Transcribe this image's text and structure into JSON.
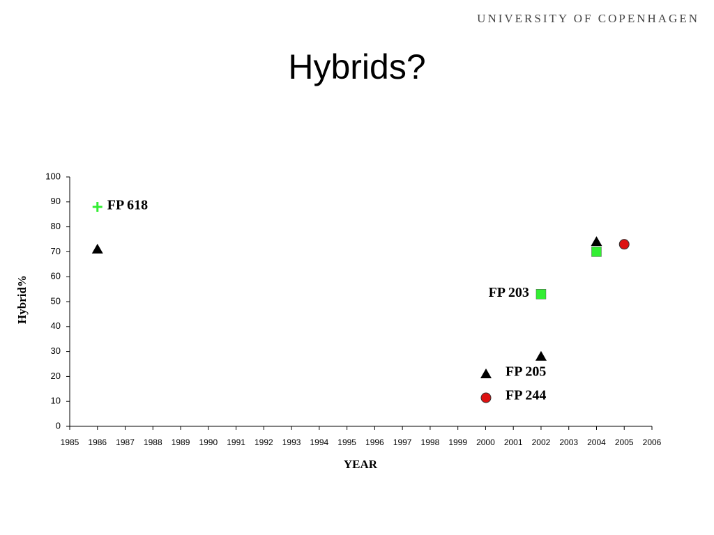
{
  "header": "UNIVERSITY OF COPENHAGEN",
  "chart_data": {
    "type": "scatter",
    "title": "Hybrids?",
    "x_label": "YEAR",
    "y_label": "Hybrid%",
    "xlim": [
      1985,
      2006
    ],
    "xticks": [
      1985,
      1986,
      1987,
      1988,
      1989,
      1990,
      1991,
      1992,
      1993,
      1994,
      1995,
      1996,
      1997,
      1998,
      1999,
      2000,
      2001,
      2002,
      2003,
      2004,
      2005,
      2006
    ],
    "ylim": [
      0,
      100
    ],
    "yticks": [
      0,
      10,
      20,
      30,
      40,
      50,
      60,
      70,
      80,
      90,
      100
    ],
    "grid": false,
    "series": [
      {
        "name": "FP 618",
        "color": "#33ee33",
        "marker": "plus",
        "show_in_legend": false,
        "x": [
          1986
        ],
        "values": [
          88
        ]
      },
      {
        "name": "FP 205",
        "color": "#000000",
        "marker": "triangle",
        "show_in_legend": true,
        "x": [
          1986,
          2002,
          2004
        ],
        "values": [
          71,
          28,
          74
        ]
      },
      {
        "name": "FP 203",
        "color": "#33ee33",
        "marker": "square",
        "show_in_legend": false,
        "x": [
          2002,
          2004
        ],
        "values": [
          53,
          70
        ]
      },
      {
        "name": "FP 244",
        "color": "#dd1111",
        "marker": "circle",
        "show_in_legend": true,
        "x": [
          2005
        ],
        "values": [
          73
        ]
      }
    ]
  }
}
